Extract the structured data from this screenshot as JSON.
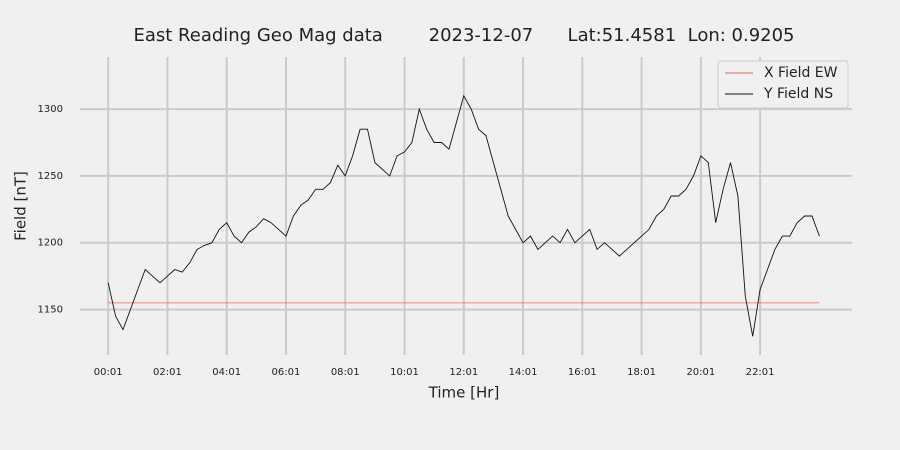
{
  "chart_data": {
    "type": "line",
    "title": "East Reading Geo Mag data        2023-12-07      Lat:51.4581  Lon: 0.9205",
    "x_label": "Time  [Hr]",
    "y_label": "Field  [nT]",
    "x": [
      0,
      0.25,
      0.5,
      0.75,
      1,
      1.25,
      1.5,
      1.75,
      2,
      2.25,
      2.5,
      2.75,
      3,
      3.25,
      3.5,
      3.75,
      4,
      4.25,
      4.5,
      4.75,
      5,
      5.25,
      5.5,
      5.75,
      6,
      6.25,
      6.5,
      6.75,
      7,
      7.25,
      7.5,
      7.75,
      8,
      8.25,
      8.5,
      8.75,
      9,
      9.25,
      9.5,
      9.75,
      10,
      10.25,
      10.5,
      10.75,
      11,
      11.25,
      11.5,
      11.75,
      12,
      12.25,
      12.5,
      12.75,
      13,
      13.25,
      13.5,
      13.75,
      14,
      14.25,
      14.5,
      14.75,
      15,
      15.25,
      15.5,
      15.75,
      16,
      16.25,
      16.5,
      16.75,
      17,
      17.25,
      17.5,
      17.75,
      18,
      18.25,
      18.5,
      18.75,
      19,
      19.25,
      19.5,
      19.75,
      20,
      20.25,
      20.5,
      20.75,
      21,
      21.25,
      21.5,
      21.75,
      22,
      22.25,
      22.5,
      22.75,
      23,
      23.25,
      23.5,
      23.75,
      24
    ],
    "series": [
      {
        "name": "X Field EW",
        "color": "#e06666",
        "values": [
          1155,
          1155,
          1155,
          1155,
          1155,
          1155,
          1155,
          1155,
          1155,
          1155,
          1155,
          1155,
          1155,
          1155,
          1155,
          1155,
          1155,
          1155,
          1155,
          1155,
          1155,
          1155,
          1155,
          1155,
          1155,
          1155,
          1155,
          1155,
          1155,
          1155,
          1155,
          1155,
          1155,
          1155,
          1155,
          1155,
          1155,
          1155,
          1155,
          1155,
          1155,
          1155,
          1155,
          1155,
          1155,
          1155,
          1155,
          1155,
          1155,
          1155,
          1155,
          1155,
          1155,
          1155,
          1155,
          1155,
          1155,
          1155,
          1155,
          1155,
          1155,
          1155,
          1155,
          1155,
          1155,
          1155,
          1155,
          1155,
          1155,
          1155,
          1155,
          1155,
          1155,
          1155,
          1155,
          1155,
          1155,
          1155,
          1155,
          1155,
          1155,
          1155,
          1155,
          1155,
          1155,
          1155,
          1155,
          1155,
          1155,
          1155,
          1155,
          1155,
          1155,
          1155,
          1155,
          1155,
          1155
        ]
      },
      {
        "name": "Y Field NS",
        "color": "#111111",
        "values": [
          1170,
          1145,
          1135,
          1150,
          1165,
          1180,
          1175,
          1170,
          1175,
          1180,
          1178,
          1185,
          1195,
          1198,
          1200,
          1210,
          1215,
          1205,
          1200,
          1208,
          1212,
          1218,
          1215,
          1210,
          1205,
          1220,
          1228,
          1232,
          1240,
          1240,
          1245,
          1258,
          1250,
          1265,
          1285,
          1285,
          1260,
          1255,
          1250,
          1265,
          1268,
          1275,
          1300,
          1285,
          1275,
          1275,
          1270,
          1290,
          1310,
          1300,
          1285,
          1280,
          1260,
          1240,
          1220,
          1210,
          1200,
          1205,
          1195,
          1200,
          1205,
          1200,
          1210,
          1200,
          1205,
          1210,
          1195,
          1200,
          1195,
          1190,
          1195,
          1200,
          1205,
          1210,
          1220,
          1225,
          1235,
          1235,
          1240,
          1250,
          1265,
          1260,
          1215,
          1240,
          1260,
          1235,
          1160,
          1130,
          1165,
          1180,
          1195,
          1205,
          1205,
          1215,
          1220,
          1220,
          1205
        ]
      }
    ],
    "xlim": [
      -0.95,
      25.1
    ],
    "xticks": [
      {
        "value": 0,
        "label": "00:01"
      },
      {
        "value": 2,
        "label": "02:01"
      },
      {
        "value": 4,
        "label": "04:01"
      },
      {
        "value": 6,
        "label": "06:01"
      },
      {
        "value": 8,
        "label": "08:01"
      },
      {
        "value": 10,
        "label": "10:01"
      },
      {
        "value": 12,
        "label": "12:01"
      },
      {
        "value": 14,
        "label": "14:01"
      },
      {
        "value": 16,
        "label": "16:01"
      },
      {
        "value": 18,
        "label": "18:01"
      },
      {
        "value": 20,
        "label": "20:01"
      },
      {
        "value": 22,
        "label": "22:01"
      }
    ],
    "ylim": [
      1116,
      1339
    ],
    "yticks": [
      1150,
      1200,
      1250,
      1300
    ],
    "grid": true,
    "legend": "upper right"
  }
}
